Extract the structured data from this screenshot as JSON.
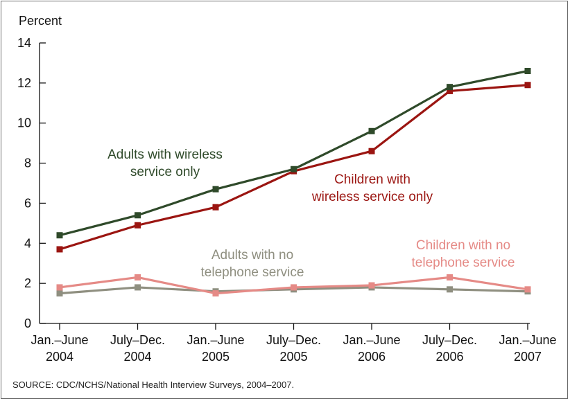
{
  "chart_data": {
    "type": "line",
    "ylabel": "Percent",
    "ylim": [
      0,
      14
    ],
    "yticks": [
      0,
      2,
      4,
      6,
      8,
      10,
      12,
      14
    ],
    "categories": [
      [
        "Jan.–June",
        "2004"
      ],
      [
        "July–Dec.",
        "2004"
      ],
      [
        "Jan.–June",
        "2005"
      ],
      [
        "July–Dec.",
        "2005"
      ],
      [
        "Jan.–June",
        "2006"
      ],
      [
        "July–Dec.",
        "2006"
      ],
      [
        "Jan.–June",
        "2007"
      ]
    ],
    "grid": false,
    "series": [
      {
        "name": "Adults with wireless service only",
        "label_lines": [
          "Adults with wireless",
          "service only"
        ],
        "color": "#2f4a2a",
        "values": [
          4.4,
          5.4,
          6.7,
          7.7,
          9.6,
          11.8,
          12.6
        ]
      },
      {
        "name": "Children with wireless service only",
        "label_lines": [
          "Children with",
          "wireless service only"
        ],
        "color": "#9b1511",
        "values": [
          3.7,
          4.9,
          5.8,
          7.6,
          8.6,
          11.6,
          11.9
        ]
      },
      {
        "name": "Adults with no telephone service",
        "label_lines": [
          "Adults with no",
          "telephone service"
        ],
        "color": "#8f8f80",
        "values": [
          1.5,
          1.8,
          1.6,
          1.7,
          1.8,
          1.7,
          1.6
        ]
      },
      {
        "name": "Children with no telephone service",
        "label_lines": [
          "Children with no",
          "telephone service"
        ],
        "color": "#e58a86",
        "values": [
          1.8,
          2.3,
          1.5,
          1.8,
          1.9,
          2.3,
          1.7
        ]
      }
    ]
  },
  "source": "SOURCE: CDC/NCHS/National Health Interview Surveys, 2004–2007."
}
